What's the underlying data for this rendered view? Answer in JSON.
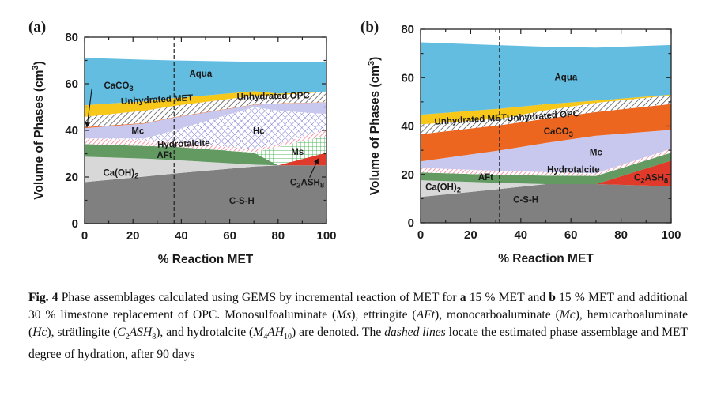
{
  "chart_data": [
    {
      "type": "area",
      "panel_label": "(a)",
      "xlabel": "% Reaction MET",
      "ylabel": {
        "main": "Volume of Phases (cm",
        "sup": "3",
        "end": ")"
      },
      "xlim": [
        0,
        100
      ],
      "ylim": [
        0,
        80
      ],
      "xticks": [
        "0",
        "20",
        "40",
        "60",
        "80",
        "100"
      ],
      "yticks": [
        "0",
        "20",
        "40",
        "60",
        "80"
      ],
      "dashed_line_x": 37,
      "x": [
        0,
        25,
        37,
        70,
        80,
        100
      ],
      "stacking": "cumulative upper boundaries, bottom to top",
      "series": [
        {
          "name": "C-S-H",
          "top": [
            17.8,
            20.2,
            21.5,
            24.5,
            25,
            25
          ],
          "color": "#808080",
          "fill": "solid"
        },
        {
          "name": "C2ASH8",
          "top": [
            17.8,
            20.2,
            21.5,
            24.5,
            25,
            30.4
          ],
          "color": "#e03a2a",
          "fill": "solid"
        },
        {
          "name": "Ca(OH)2",
          "top": [
            28.7,
            27.9,
            27.3,
            25.3,
            25,
            30.4
          ],
          "color": "#d8d8d8",
          "fill": "solid"
        },
        {
          "name": "AFt",
          "top": [
            34.1,
            33.3,
            33,
            30.4,
            25,
            30.4
          ],
          "color": "#629a62",
          "fill": "solid"
        },
        {
          "name": "Ms",
          "top": [
            34.1,
            33.3,
            33,
            30.6,
            33,
            37.7
          ],
          "color": "#3cb04a",
          "fill": "grid"
        },
        {
          "name": "Hydrotalcite",
          "top": [
            36.6,
            35.8,
            35,
            32,
            34,
            40.5
          ],
          "color": "#f07088",
          "fill": "hatch"
        },
        {
          "name": "Hc",
          "top": [
            36.6,
            36.5,
            40,
            50,
            48.5,
            47
          ],
          "color": "#5a5ac8",
          "fill": "crosshatch"
        },
        {
          "name": "Mc",
          "top": [
            41.0,
            43,
            45.5,
            51,
            51.5,
            52
          ],
          "color": "#c8c8ee",
          "fill": "solid"
        },
        {
          "name": "CaCO3",
          "top": [
            41.4,
            43.2,
            45.7,
            51.1,
            51.6,
            52.1
          ],
          "color": "#ec6620",
          "fill": "solid"
        },
        {
          "name": "Unhydrated OPC",
          "top": [
            45.8,
            48.5,
            50.5,
            54.8,
            55.2,
            56.5
          ],
          "color": "#333333",
          "fill": "hatch"
        },
        {
          "name": "Unhydrated MET",
          "top": [
            50.8,
            52.5,
            53.8,
            56.8,
            55.8,
            56.7
          ],
          "color": "#f7c81a",
          "fill": "solid"
        },
        {
          "name": "Aqua",
          "top": [
            71.1,
            70.3,
            70,
            69.4,
            69.5,
            69.5
          ],
          "color": "#62bde0",
          "fill": "solid"
        }
      ],
      "labels": {
        "aqua": {
          "main": "Aqua"
        },
        "caco3": {
          "main": "CaCO",
          "sub": "3"
        },
        "met": {
          "main": "Unhydrated MET"
        },
        "opc": {
          "main": "Unhydrated OPC"
        },
        "mc": {
          "main": "Mc"
        },
        "hc": {
          "main": "Hc"
        },
        "hydrotalcite": {
          "main": "Hydrotalcite"
        },
        "aft": {
          "main": "AFt"
        },
        "ms": {
          "main": "Ms"
        },
        "ch": {
          "main": "Ca(OH)",
          "sub": "2"
        },
        "c2ash8": {
          "main": "C",
          "sub": "2",
          "main2": "ASH",
          "sub2": "8"
        },
        "csh": {
          "main": "C-S-H"
        }
      }
    },
    {
      "type": "area",
      "panel_label": "(b)",
      "xlabel": "% Reaction MET",
      "ylabel": {
        "main": "Volume of Phases (cm",
        "sup": "3",
        "end": ")"
      },
      "xlim": [
        0,
        100
      ],
      "ylim": [
        0,
        80
      ],
      "xticks": [
        "0",
        "20",
        "40",
        "60",
        "80",
        "100"
      ],
      "yticks": [
        "0",
        "20",
        "40",
        "60",
        "80"
      ],
      "dashed_line_x": 31.5,
      "x": [
        0,
        32,
        50,
        70,
        100
      ],
      "stacking": "cumulative upper boundaries, bottom to top",
      "series": [
        {
          "name": "C-S-H",
          "top": [
            10.7,
            14,
            16,
            16,
            15.1
          ],
          "color": "#808080",
          "fill": "solid"
        },
        {
          "name": "C2ASH8",
          "top": [
            10.7,
            14,
            16,
            16,
            25.7
          ],
          "color": "#e03a2a",
          "fill": "solid"
        },
        {
          "name": "Ca(OH)2",
          "top": [
            17.6,
            16.5,
            16,
            16,
            25.7
          ],
          "color": "#d8d8d8",
          "fill": "solid"
        },
        {
          "name": "AFt",
          "top": [
            20.8,
            19.8,
            19.5,
            19.4,
            29
          ],
          "color": "#629a62",
          "fill": "solid"
        },
        {
          "name": "Hydrotalcite",
          "top": [
            22.7,
            21.5,
            21,
            20.5,
            30.6
          ],
          "color": "#f07088",
          "fill": "hatch"
        },
        {
          "name": "Mc",
          "top": [
            25.4,
            30,
            33,
            36,
            38.4
          ],
          "color": "#c8c8ee",
          "fill": "solid"
        },
        {
          "name": "CaCO3",
          "top": [
            36.6,
            40.4,
            43,
            45.8,
            49.1
          ],
          "color": "#ec6620",
          "fill": "solid"
        },
        {
          "name": "Unhydrated OPC",
          "top": [
            40.7,
            43.1,
            46.5,
            49.6,
            52.7
          ],
          "color": "#333333",
          "fill": "hatch"
        },
        {
          "name": "Unhydrated MET",
          "top": [
            44.7,
            47.2,
            49,
            50.5,
            53
          ],
          "color": "#f7c81a",
          "fill": "solid"
        },
        {
          "name": "Aqua",
          "top": [
            74.6,
            73.4,
            72.8,
            72.4,
            73.5
          ],
          "color": "#62bde0",
          "fill": "solid"
        }
      ],
      "labels": {
        "aqua": {
          "main": "Aqua"
        },
        "met": {
          "main": "Unhydrated MET"
        },
        "opc": {
          "main": "Unhydrated OPC"
        },
        "caco3": {
          "main": "CaCO",
          "sub": "3"
        },
        "mc": {
          "main": "Mc"
        },
        "hydrotalcite": {
          "main": "Hydrotalcite"
        },
        "aft": {
          "main": "AFt"
        },
        "c2ash8": {
          "main": "C",
          "sub": "2",
          "main2": "ASH",
          "sub2": "8"
        },
        "ch": {
          "main": "Ca(OH)",
          "sub": "2"
        },
        "csh": {
          "main": "C-S-H"
        }
      }
    }
  ],
  "caption": [
    {
      "t": "Fig. 4",
      "s": "b"
    },
    {
      "t": "  Phase assemblages calculated using GEMS by incremental reaction of MET for "
    },
    {
      "t": "a",
      "s": "b"
    },
    {
      "t": " 15 % MET and "
    },
    {
      "t": "b",
      "s": "b"
    },
    {
      "t": " 15 % MET and additional 30 % limestone replacement of OPC. Monosulfoaluminate ("
    },
    {
      "t": "Ms",
      "s": "i"
    },
    {
      "t": "), ettringite ("
    },
    {
      "t": "AFt",
      "s": "i"
    },
    {
      "t": "), monocarboaluminate ("
    },
    {
      "t": "Mc",
      "s": "i"
    },
    {
      "t": "), hemicarboaluminate ("
    },
    {
      "t": "Hc",
      "s": "i"
    },
    {
      "t": "), strätlingite ("
    },
    {
      "t": "C",
      "s": "i"
    },
    {
      "t": "2",
      "s": "sub"
    },
    {
      "t": "ASH",
      "s": "i"
    },
    {
      "t": "8",
      "s": "sub"
    },
    {
      "t": "), and hydrotalcite ("
    },
    {
      "t": "M",
      "s": "i"
    },
    {
      "t": "4",
      "s": "sub"
    },
    {
      "t": "AH",
      "s": "i"
    },
    {
      "t": "10",
      "s": "sub"
    },
    {
      "t": ") are denoted. The "
    },
    {
      "t": "dashed lines",
      "s": "i"
    },
    {
      "t": " locate the estimated phase assemblage and MET degree of hydration, after 90 days"
    }
  ]
}
